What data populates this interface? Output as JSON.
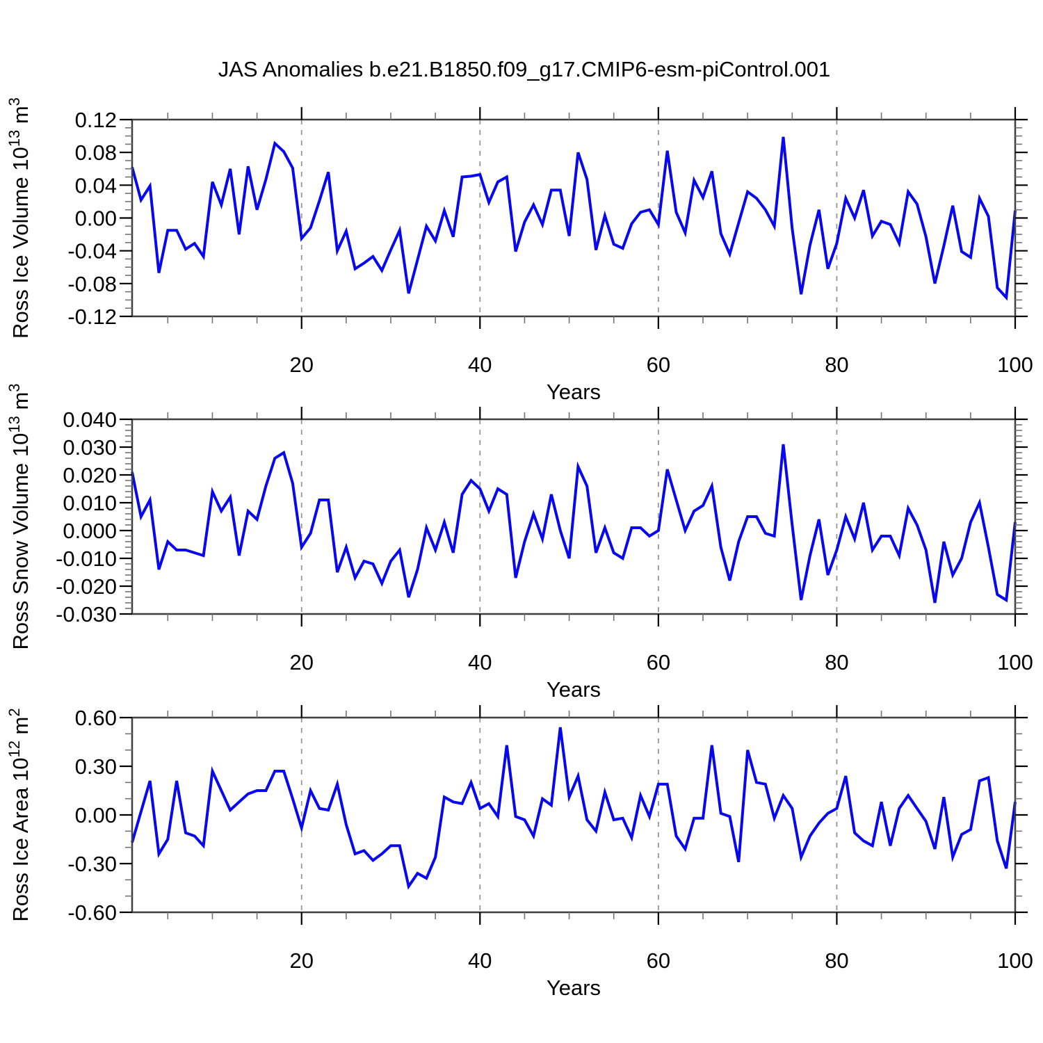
{
  "title": "JAS Anomalies b.e21.B1850.f09_g17.CMIP6-esm-piControl.001",
  "colors": {
    "line": "#0808ee",
    "frame": "#3f3f3f",
    "major_tick": "#000000",
    "minor_tick": "#737373",
    "grid": "#969696",
    "text": "#000000"
  },
  "x_axis": {
    "label": "Years",
    "x_start": 1,
    "x_end": 100,
    "major_ticks": [
      20,
      40,
      60,
      80,
      100
    ],
    "minor_step": 5,
    "grid_lines": [
      20,
      40,
      60,
      80
    ]
  },
  "chart_data": [
    {
      "type": "line",
      "name": "ross-ice-volume",
      "ylabel": "Ross Ice Volume 10^13 m^3",
      "ylim": [
        -0.12,
        0.12
      ],
      "ytick_values": [
        0.12,
        0.08,
        0.04,
        0.0,
        -0.04,
        -0.08,
        -0.12
      ],
      "ytick_labels": [
        "0.12",
        "0.08",
        "0.04",
        "0.00",
        "-0.04",
        "-0.08",
        "-0.12"
      ],
      "yminor_step": 0.01,
      "grid": "x-dashed",
      "legend": "none",
      "values": [
        0.062,
        0.022,
        0.039,
        -0.067,
        -0.015,
        -0.015,
        -0.038,
        -0.031,
        -0.047,
        0.044,
        0.016,
        0.06,
        -0.02,
        0.063,
        0.01,
        0.047,
        0.091,
        0.081,
        0.061,
        -0.025,
        -0.012,
        0.021,
        0.056,
        -0.04,
        -0.016,
        -0.062,
        -0.055,
        -0.047,
        -0.064,
        -0.039,
        -0.015,
        -0.092,
        -0.051,
        -0.01,
        -0.028,
        0.009,
        -0.023,
        0.05,
        0.051,
        0.053,
        0.019,
        0.044,
        0.05,
        -0.041,
        -0.005,
        0.016,
        -0.008,
        0.034,
        0.034,
        -0.022,
        0.08,
        0.047,
        -0.039,
        0.003,
        -0.032,
        -0.037,
        -0.007,
        0.007,
        0.01,
        -0.008,
        0.082,
        0.007,
        -0.018,
        0.046,
        0.025,
        0.057,
        -0.019,
        -0.044,
        -0.006,
        0.032,
        0.024,
        0.01,
        -0.01,
        0.099,
        -0.013,
        -0.093,
        -0.033,
        0.01,
        -0.062,
        -0.031,
        0.024,
        0.0,
        0.034,
        -0.022,
        -0.004,
        -0.008,
        -0.031,
        0.032,
        0.017,
        -0.023,
        -0.08,
        -0.034,
        0.015,
        -0.041,
        -0.048,
        0.024,
        0.002,
        -0.085,
        -0.097,
        0.009
      ]
    },
    {
      "type": "line",
      "name": "ross-snow-volume",
      "ylabel": "Ross Snow Volume 10^13 m^3",
      "ylim": [
        -0.03,
        0.04
      ],
      "ytick_values": [
        0.04,
        0.03,
        0.02,
        0.01,
        0.0,
        -0.01,
        -0.02,
        -0.03
      ],
      "ytick_labels": [
        "0.040",
        "0.030",
        "0.020",
        "0.010",
        "0.000",
        "-0.010",
        "-0.020",
        "-0.030"
      ],
      "yminor_step": 0.002,
      "grid": "x-dashed",
      "legend": "none",
      "values": [
        0.021,
        0.005,
        0.011,
        -0.014,
        -0.004,
        -0.007,
        -0.007,
        -0.008,
        -0.009,
        0.014,
        0.007,
        0.012,
        -0.009,
        0.007,
        0.004,
        0.016,
        0.026,
        0.028,
        0.017,
        -0.006,
        -0.001,
        0.011,
        0.011,
        -0.015,
        -0.006,
        -0.017,
        -0.011,
        -0.012,
        -0.019,
        -0.011,
        -0.007,
        -0.024,
        -0.014,
        0.001,
        -0.007,
        0.003,
        -0.008,
        0.013,
        0.018,
        0.015,
        0.007,
        0.015,
        0.013,
        -0.017,
        -0.004,
        0.006,
        -0.003,
        0.013,
        0.0,
        -0.01,
        0.023,
        0.016,
        -0.008,
        0.001,
        -0.008,
        -0.01,
        0.001,
        0.001,
        -0.002,
        0.0,
        0.022,
        0.011,
        0.0,
        0.007,
        0.009,
        0.016,
        -0.006,
        -0.018,
        -0.004,
        0.005,
        0.005,
        -0.001,
        -0.002,
        0.031,
        0.002,
        -0.025,
        -0.009,
        0.004,
        -0.016,
        -0.007,
        0.005,
        -0.003,
        0.01,
        -0.007,
        -0.002,
        -0.002,
        -0.009,
        0.008,
        0.002,
        -0.007,
        -0.026,
        -0.004,
        -0.016,
        -0.01,
        0.003,
        0.01,
        -0.006,
        -0.023,
        -0.025,
        0.003
      ]
    },
    {
      "type": "line",
      "name": "ross-ice-area",
      "ylabel": "Ross Ice Area 10^12 m^2",
      "ylim": [
        -0.6,
        0.6
      ],
      "ytick_values": [
        0.6,
        0.3,
        0.0,
        -0.3,
        -0.6
      ],
      "ytick_labels": [
        "0.60",
        "0.30",
        "0.00",
        "-0.30",
        "-0.60"
      ],
      "yminor_step": 0.1,
      "grid": "x-dashed",
      "legend": "none",
      "values": [
        -0.17,
        0.02,
        0.21,
        -0.24,
        -0.15,
        0.21,
        -0.11,
        -0.13,
        -0.19,
        0.27,
        0.15,
        0.03,
        0.08,
        0.13,
        0.15,
        0.15,
        0.27,
        0.27,
        0.1,
        -0.08,
        0.15,
        0.04,
        0.03,
        0.19,
        -0.06,
        -0.24,
        -0.22,
        -0.28,
        -0.24,
        -0.19,
        -0.19,
        -0.44,
        -0.36,
        -0.39,
        -0.26,
        0.11,
        0.08,
        0.07,
        0.2,
        0.04,
        0.07,
        -0.01,
        0.43,
        -0.01,
        -0.03,
        -0.13,
        0.1,
        0.06,
        0.54,
        0.11,
        0.24,
        -0.03,
        -0.1,
        0.14,
        -0.03,
        -0.02,
        -0.14,
        0.12,
        -0.01,
        0.19,
        0.19,
        -0.13,
        -0.21,
        -0.02,
        -0.02,
        0.43,
        0.01,
        -0.01,
        -0.29,
        0.4,
        0.2,
        0.19,
        -0.02,
        0.12,
        0.04,
        -0.26,
        -0.13,
        -0.05,
        0.01,
        0.04,
        0.24,
        -0.11,
        -0.16,
        -0.19,
        0.08,
        -0.19,
        0.04,
        0.12,
        0.04,
        -0.04,
        -0.21,
        0.11,
        -0.26,
        -0.12,
        -0.09,
        0.21,
        0.23,
        -0.16,
        -0.33,
        0.08
      ]
    }
  ]
}
